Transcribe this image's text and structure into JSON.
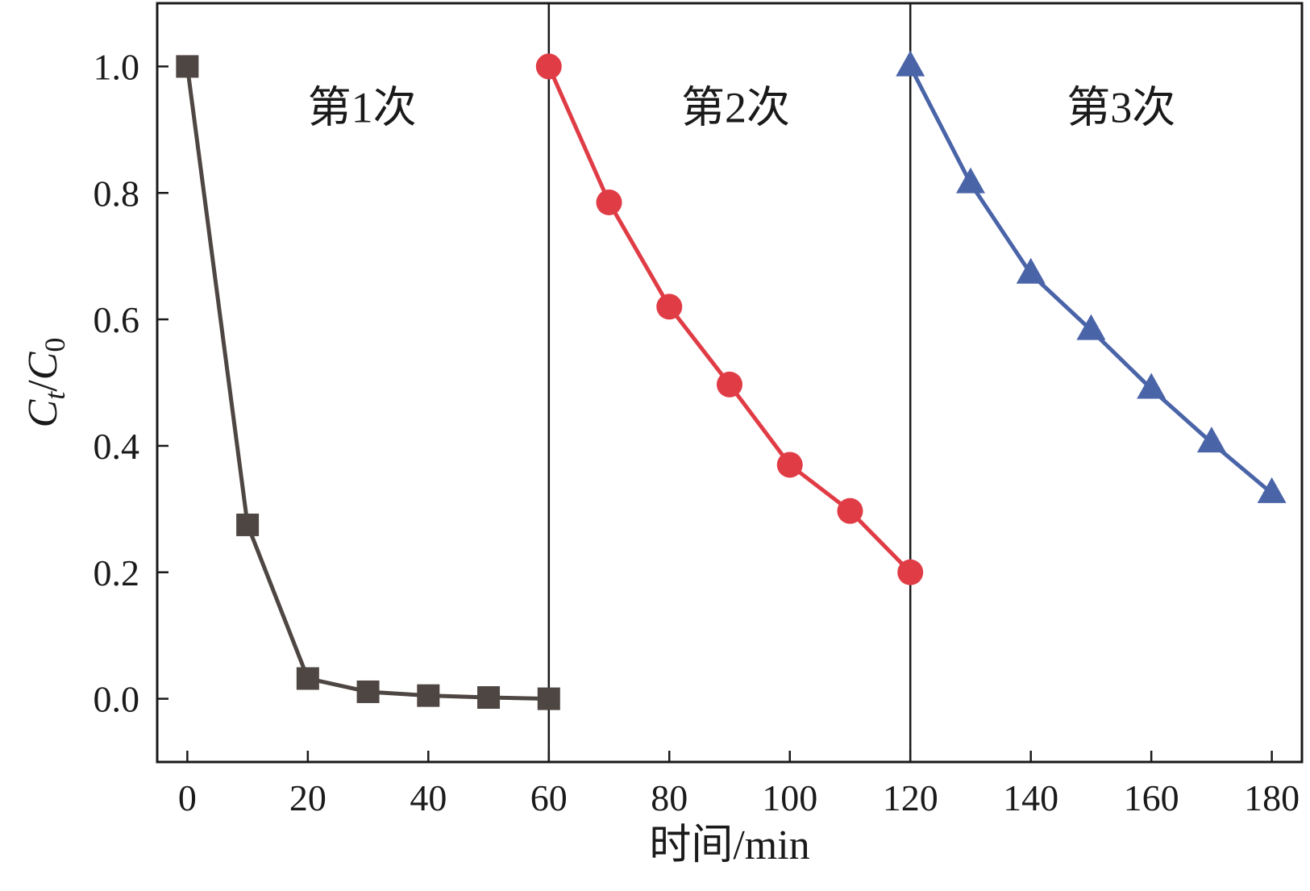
{
  "chart_data": {
    "type": "line",
    "title": "",
    "xlabel": "时间/min",
    "ylabel": {
      "parts": [
        "C",
        "t",
        "/",
        "C",
        "0"
      ]
    },
    "xlim": [
      -5,
      185
    ],
    "ylim": [
      -0.1,
      1.1
    ],
    "xticks": [
      0,
      20,
      40,
      60,
      80,
      100,
      120,
      140,
      160,
      180
    ],
    "xtick_labels": [
      "0",
      "20",
      "40",
      "60",
      "80",
      "100",
      "120",
      "140",
      "160",
      "180"
    ],
    "yticks": [
      0.0,
      0.2,
      0.4,
      0.6,
      0.8,
      1.0
    ],
    "ytick_labels": [
      "0.0",
      "0.2",
      "0.4",
      "0.6",
      "0.8",
      "1.0"
    ],
    "grid": false,
    "separators_x": [
      60,
      120
    ],
    "annotations": [
      {
        "text": "第1次",
        "x": 29,
        "y": 0.935
      },
      {
        "text": "第2次",
        "x": 91,
        "y": 0.935
      },
      {
        "text": "第3次",
        "x": 155,
        "y": 0.935
      }
    ],
    "series": [
      {
        "color": "#4e4642",
        "marker": "square",
        "x": [
          0,
          10,
          20,
          30,
          40,
          50,
          60
        ],
        "y": [
          1.0,
          0.275,
          0.032,
          0.011,
          0.005,
          0.002,
          0.0
        ]
      },
      {
        "color": "#e03c46",
        "marker": "circle",
        "x": [
          60,
          70,
          80,
          90,
          100,
          110,
          120
        ],
        "y": [
          1.0,
          0.785,
          0.62,
          0.497,
          0.37,
          0.297,
          0.2
        ]
      },
      {
        "color": "#4a64a8",
        "marker": "triangle",
        "x": [
          120,
          130,
          140,
          150,
          160,
          170,
          180
        ],
        "y": [
          1.0,
          0.815,
          0.672,
          0.583,
          0.49,
          0.405,
          0.325
        ]
      }
    ]
  }
}
